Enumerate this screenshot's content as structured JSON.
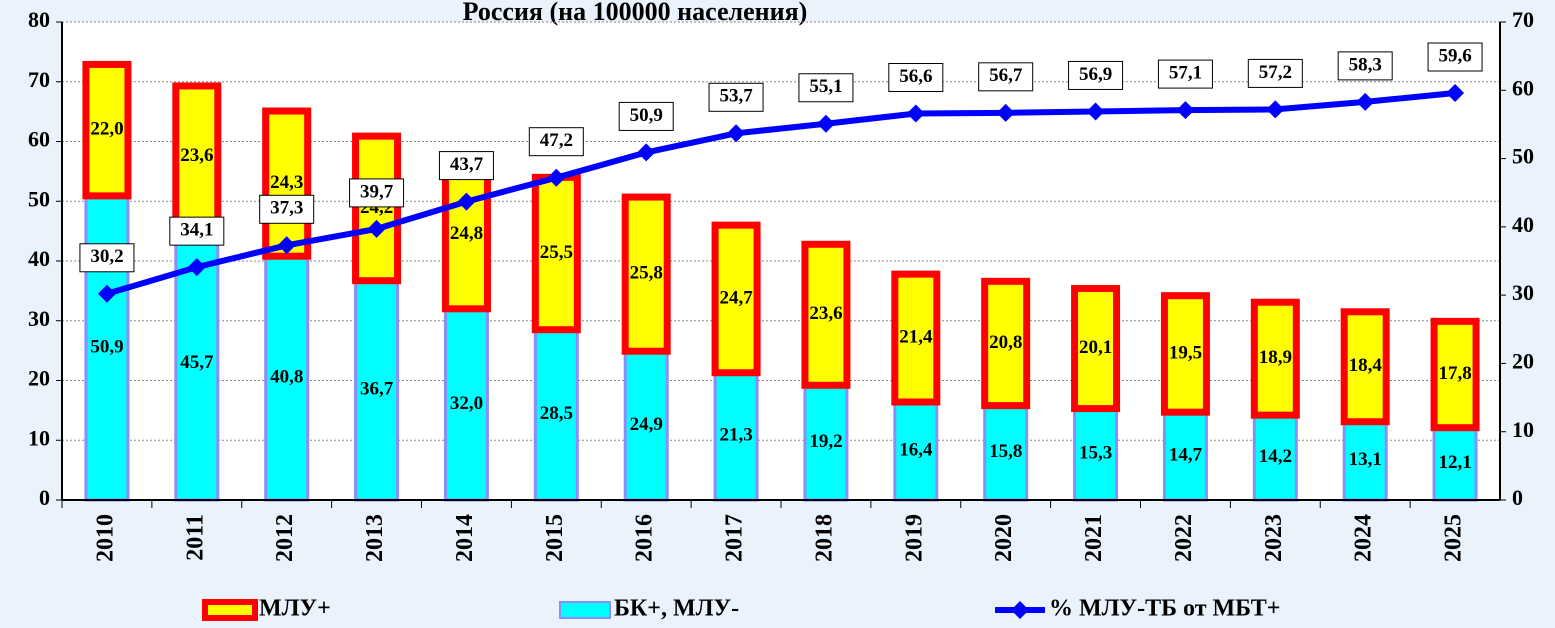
{
  "chart_data": {
    "type": "bar",
    "stacked": true,
    "title": "Россия (на 100000 населения)",
    "categories": [
      "2010",
      "2011",
      "2012",
      "2013",
      "2014",
      "2015",
      "2016",
      "2017",
      "2018",
      "2019",
      "2020",
      "2021",
      "2022",
      "2023",
      "2024",
      "2025"
    ],
    "series": [
      {
        "name": "БК+, МЛУ-",
        "type": "bar",
        "color": "#00ffff",
        "edge": "#8c8cff",
        "values": [
          50.9,
          45.7,
          40.8,
          36.7,
          32.0,
          28.5,
          24.9,
          21.3,
          19.2,
          16.4,
          15.8,
          15.3,
          14.7,
          14.2,
          13.1,
          12.1
        ],
        "value_labels": [
          "50,9",
          "45,7",
          "40,8",
          "36,7",
          "32,0",
          "28,5",
          "24,9",
          "21,3",
          "19,2",
          "16,4",
          "15,8",
          "15,3",
          "14,7",
          "14,2",
          "13,1",
          "12,1"
        ]
      },
      {
        "name": "МЛУ+",
        "type": "bar",
        "color": "#ffff00",
        "edge": "#ff0000",
        "values": [
          22.0,
          23.6,
          24.3,
          24.2,
          24.8,
          25.5,
          25.8,
          24.7,
          23.6,
          21.4,
          20.8,
          20.1,
          19.5,
          18.9,
          18.4,
          17.8
        ],
        "value_labels": [
          "22,0",
          "23,6",
          "24,3",
          "24,2",
          "24,8",
          "25,5",
          "25,8",
          "24,7",
          "23,6",
          "21,4",
          "20,8",
          "20,1",
          "19,5",
          "18,9",
          "18,4",
          "17,8"
        ]
      },
      {
        "name": "% МЛУ-ТБ от МБТ+",
        "type": "line",
        "axis": "y2",
        "color": "#0000ff",
        "values": [
          30.2,
          34.1,
          37.3,
          39.7,
          43.7,
          47.2,
          50.9,
          53.7,
          55.1,
          56.6,
          56.7,
          56.9,
          57.1,
          57.2,
          58.3,
          59.6
        ],
        "value_labels": [
          "30,2",
          "34,1",
          "37,3",
          "39,7",
          "43,7",
          "47,2",
          "50,9",
          "53,7",
          "55,1",
          "56,6",
          "56,7",
          "56,9",
          "57,1",
          "57,2",
          "58,3",
          "59,6"
        ]
      }
    ],
    "ylim": [
      0,
      80
    ],
    "yticks": [
      0,
      10,
      20,
      30,
      40,
      50,
      60,
      70,
      80
    ],
    "y2lim": [
      0,
      70
    ],
    "y2ticks": [
      0,
      10,
      20,
      30,
      40,
      50,
      60,
      70
    ],
    "grid": true,
    "legend": "bottom"
  }
}
